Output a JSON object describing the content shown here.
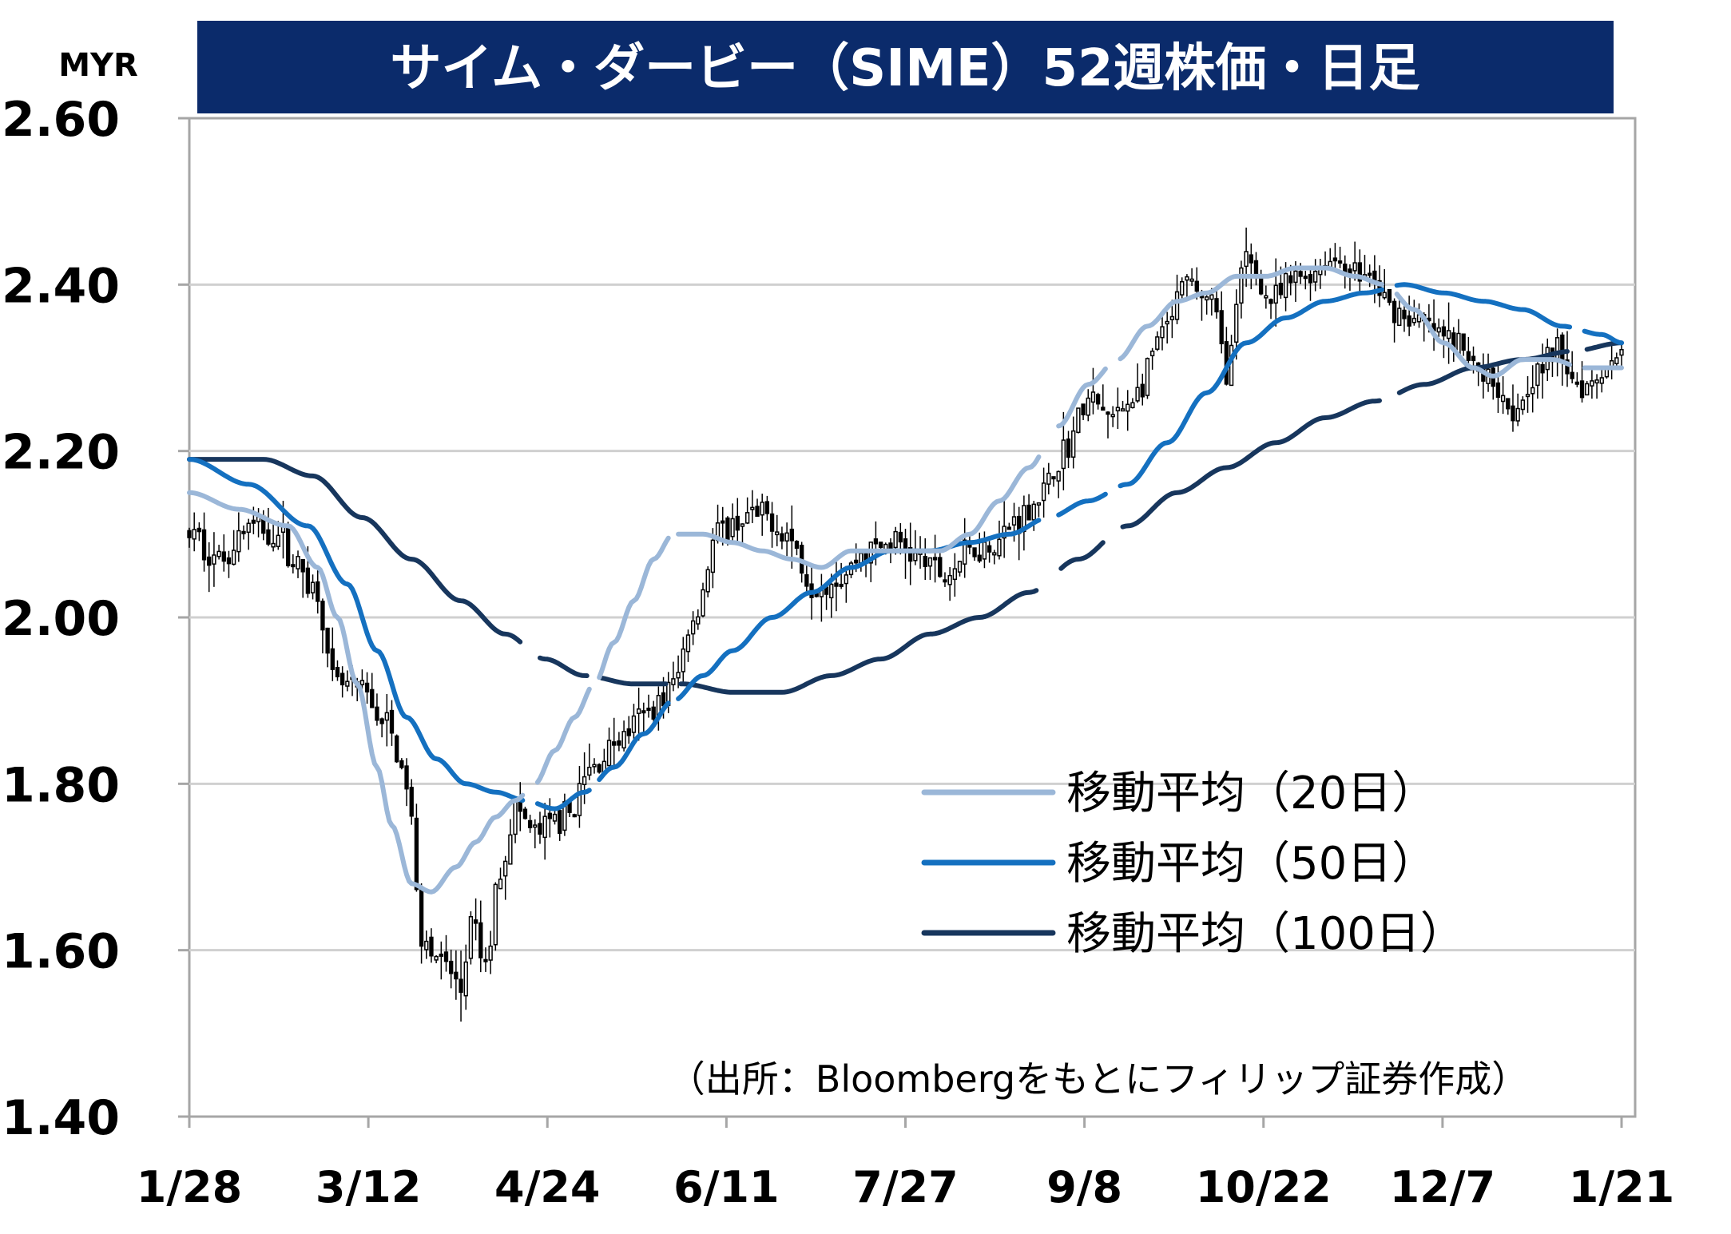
{
  "title": "サイム・ダービー（SIME）52週株価・日足",
  "unit": "MYR",
  "source_note": "（出所：Bloombergをもとにフィリップ証券作成）",
  "colors": {
    "title_bg": "#0b2b6b",
    "title_fg": "#ffffff",
    "ma20": "#9bb7d8",
    "ma50": "#1470c0",
    "ma100": "#17365d",
    "candle": "#000000",
    "grid": "#d0d0d0",
    "frame": "#a6a6a6"
  },
  "chart_data": {
    "type": "candlestick",
    "x_tick_labels": [
      "1/28",
      "3/12",
      "4/24",
      "6/11",
      "7/27",
      "9/8",
      "10/22",
      "12/7",
      "1/21"
    ],
    "y_tick_labels": [
      "2.60",
      "2.40",
      "2.20",
      "2.00",
      "1.80",
      "1.60",
      "1.40"
    ],
    "ylim": [
      1.4,
      2.6
    ],
    "grid": "horizontal",
    "legend_position": "bottom-right",
    "legend": [
      {
        "key": "ma20",
        "label": "移動平均（20日）"
      },
      {
        "key": "ma50",
        "label": "移動平均（50日）"
      },
      {
        "key": "ma100",
        "label": "移動平均（100日）"
      }
    ],
    "price_anchors": [
      [
        0,
        2.1
      ],
      [
        6,
        2.07
      ],
      [
        12,
        2.11
      ],
      [
        18,
        2.1
      ],
      [
        22,
        2.06
      ],
      [
        26,
        2.03
      ],
      [
        29,
        1.92
      ],
      [
        35,
        1.91
      ],
      [
        40,
        1.87
      ],
      [
        44,
        1.8
      ],
      [
        47,
        1.62
      ],
      [
        52,
        1.58
      ],
      [
        55,
        1.55
      ],
      [
        57,
        1.63
      ],
      [
        60,
        1.58
      ],
      [
        63,
        1.7
      ],
      [
        66,
        1.77
      ],
      [
        70,
        1.74
      ],
      [
        76,
        1.76
      ],
      [
        82,
        1.82
      ],
      [
        86,
        1.85
      ],
      [
        92,
        1.88
      ],
      [
        95,
        1.9
      ],
      [
        98,
        1.92
      ],
      [
        102,
        2.0
      ],
      [
        107,
        2.1
      ],
      [
        113,
        2.12
      ],
      [
        117,
        2.12
      ],
      [
        121,
        2.1
      ],
      [
        126,
        2.04
      ],
      [
        132,
        2.05
      ],
      [
        137,
        2.08
      ],
      [
        143,
        2.09
      ],
      [
        148,
        2.07
      ],
      [
        153,
        2.05
      ],
      [
        158,
        2.08
      ],
      [
        163,
        2.09
      ],
      [
        168,
        2.12
      ],
      [
        173,
        2.15
      ],
      [
        177,
        2.2
      ],
      [
        182,
        2.26
      ],
      [
        187,
        2.24
      ],
      [
        192,
        2.27
      ],
      [
        197,
        2.34
      ],
      [
        202,
        2.4
      ],
      [
        207,
        2.38
      ],
      [
        210,
        2.3
      ],
      [
        214,
        2.43
      ],
      [
        219,
        2.38
      ],
      [
        225,
        2.41
      ],
      [
        232,
        2.43
      ],
      [
        238,
        2.41
      ],
      [
        244,
        2.37
      ],
      [
        250,
        2.35
      ],
      [
        256,
        2.33
      ],
      [
        261,
        2.3
      ],
      [
        265,
        2.28
      ],
      [
        268,
        2.25
      ],
      [
        272,
        2.29
      ],
      [
        277,
        2.32
      ],
      [
        282,
        2.28
      ],
      [
        287,
        2.3
      ],
      [
        290,
        2.33
      ]
    ],
    "ma_anchors": {
      "ma20": [
        [
          0,
          2.15
        ],
        [
          10,
          2.13
        ],
        [
          20,
          2.11
        ],
        [
          26,
          2.06
        ],
        [
          30,
          2.0
        ],
        [
          34,
          1.92
        ],
        [
          38,
          1.82
        ],
        [
          41,
          1.75
        ],
        [
          45,
          1.68
        ],
        [
          49,
          1.67
        ],
        [
          54,
          1.7
        ],
        [
          58,
          1.73
        ],
        [
          62,
          1.76
        ],
        [
          66,
          1.78
        ],
        [
          70,
          1.8
        ],
        [
          74,
          1.84
        ],
        [
          78,
          1.88
        ],
        [
          82,
          1.92
        ],
        [
          86,
          1.97
        ],
        [
          90,
          2.02
        ],
        [
          94,
          2.07
        ],
        [
          98,
          2.1
        ],
        [
          104,
          2.1
        ],
        [
          110,
          2.09
        ],
        [
          116,
          2.08
        ],
        [
          122,
          2.07
        ],
        [
          128,
          2.06
        ],
        [
          134,
          2.08
        ],
        [
          140,
          2.08
        ],
        [
          146,
          2.08
        ],
        [
          152,
          2.08
        ],
        [
          158,
          2.1
        ],
        [
          164,
          2.14
        ],
        [
          170,
          2.18
        ],
        [
          176,
          2.23
        ],
        [
          182,
          2.28
        ],
        [
          188,
          2.31
        ],
        [
          194,
          2.35
        ],
        [
          200,
          2.38
        ],
        [
          206,
          2.39
        ],
        [
          212,
          2.41
        ],
        [
          218,
          2.41
        ],
        [
          224,
          2.42
        ],
        [
          230,
          2.42
        ],
        [
          236,
          2.41
        ],
        [
          242,
          2.4
        ],
        [
          248,
          2.37
        ],
        [
          254,
          2.33
        ],
        [
          260,
          2.3
        ],
        [
          264,
          2.29
        ],
        [
          270,
          2.31
        ],
        [
          276,
          2.31
        ],
        [
          282,
          2.3
        ],
        [
          290,
          2.3
        ]
      ],
      "ma50": [
        [
          0,
          2.19
        ],
        [
          12,
          2.16
        ],
        [
          24,
          2.11
        ],
        [
          32,
          2.04
        ],
        [
          38,
          1.96
        ],
        [
          44,
          1.88
        ],
        [
          50,
          1.83
        ],
        [
          56,
          1.8
        ],
        [
          62,
          1.79
        ],
        [
          68,
          1.78
        ],
        [
          74,
          1.77
        ],
        [
          80,
          1.79
        ],
        [
          86,
          1.82
        ],
        [
          92,
          1.86
        ],
        [
          98,
          1.9
        ],
        [
          104,
          1.93
        ],
        [
          110,
          1.96
        ],
        [
          118,
          2.0
        ],
        [
          126,
          2.03
        ],
        [
          134,
          2.06
        ],
        [
          142,
          2.08
        ],
        [
          150,
          2.08
        ],
        [
          158,
          2.09
        ],
        [
          166,
          2.1
        ],
        [
          174,
          2.12
        ],
        [
          182,
          2.14
        ],
        [
          190,
          2.16
        ],
        [
          198,
          2.21
        ],
        [
          206,
          2.27
        ],
        [
          214,
          2.33
        ],
        [
          222,
          2.36
        ],
        [
          230,
          2.38
        ],
        [
          238,
          2.39
        ],
        [
          246,
          2.4
        ],
        [
          254,
          2.39
        ],
        [
          262,
          2.38
        ],
        [
          270,
          2.37
        ],
        [
          278,
          2.35
        ],
        [
          286,
          2.34
        ],
        [
          290,
          2.33
        ]
      ],
      "ma100": [
        [
          0,
          2.19
        ],
        [
          15,
          2.19
        ],
        [
          25,
          2.17
        ],
        [
          35,
          2.12
        ],
        [
          45,
          2.07
        ],
        [
          55,
          2.02
        ],
        [
          64,
          1.98
        ],
        [
          72,
          1.95
        ],
        [
          80,
          1.93
        ],
        [
          90,
          1.92
        ],
        [
          100,
          1.92
        ],
        [
          110,
          1.91
        ],
        [
          120,
          1.91
        ],
        [
          130,
          1.93
        ],
        [
          140,
          1.95
        ],
        [
          150,
          1.98
        ],
        [
          160,
          2.0
        ],
        [
          170,
          2.03
        ],
        [
          180,
          2.07
        ],
        [
          190,
          2.11
        ],
        [
          200,
          2.15
        ],
        [
          210,
          2.18
        ],
        [
          220,
          2.21
        ],
        [
          230,
          2.24
        ],
        [
          240,
          2.26
        ],
        [
          250,
          2.28
        ],
        [
          260,
          2.3
        ],
        [
          270,
          2.31
        ],
        [
          280,
          2.32
        ],
        [
          290,
          2.33
        ]
      ]
    },
    "ma_breaks": [
      [
        66,
        72
      ],
      [
        80,
        84
      ],
      [
        96,
        100
      ],
      [
        170,
        178
      ],
      [
        184,
        190
      ],
      [
        240,
        246
      ],
      [
        278,
        284
      ]
    ]
  }
}
